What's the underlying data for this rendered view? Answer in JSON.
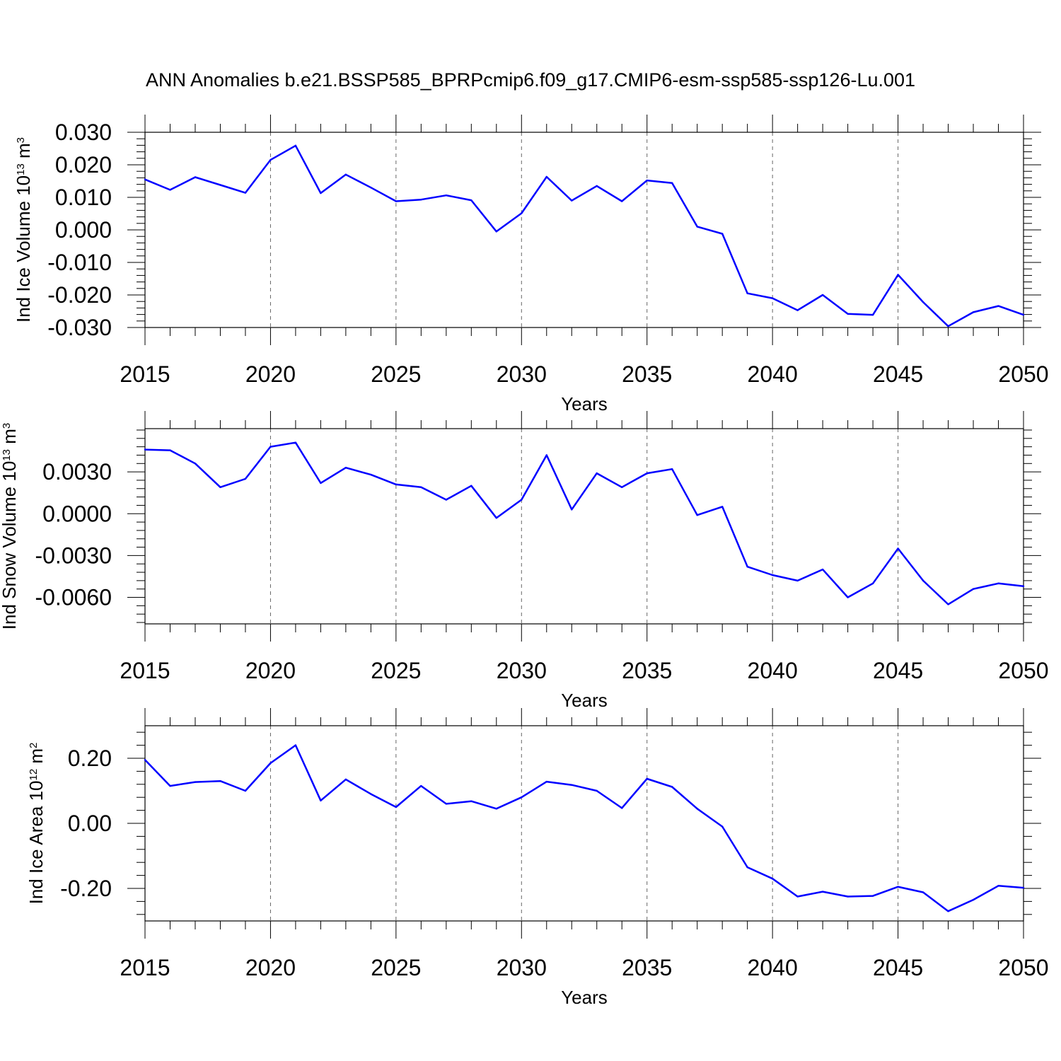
{
  "title": "ANN Anomalies b.e21.BSSP585_BPRPcmip6.f09_g17.CMIP6-esm-ssp585-ssp126-Lu.001",
  "colors": {
    "line": "#0000ff",
    "axis": "#000000",
    "grid": "#666666"
  },
  "chart_data": [
    {
      "type": "line",
      "xlabel": "Years",
      "ylabel": {
        "text": "Ind Ice Volume 10",
        "exp": "13",
        "unit": " m",
        "unit_exp": "3"
      },
      "xlim": [
        2015,
        2050
      ],
      "ylim": [
        -0.03,
        0.03
      ],
      "xticks": [
        "2015",
        "2020",
        "2025",
        "2030",
        "2035",
        "2040",
        "2045",
        "2050"
      ],
      "yticks": [
        {
          "v": 0.03,
          "label": "0.030"
        },
        {
          "v": 0.02,
          "label": "0.020"
        },
        {
          "v": 0.01,
          "label": "0.010"
        },
        {
          "v": 0.0,
          "label": "0.000"
        },
        {
          "v": -0.01,
          "label": "-0.010"
        },
        {
          "v": -0.02,
          "label": "-0.020"
        },
        {
          "v": -0.03,
          "label": "-0.030"
        }
      ],
      "x": [
        2015,
        2016,
        2017,
        2018,
        2019,
        2020,
        2021,
        2022,
        2023,
        2024,
        2025,
        2026,
        2027,
        2028,
        2029,
        2030,
        2031,
        2032,
        2033,
        2034,
        2035,
        2036,
        2037,
        2038,
        2039,
        2040,
        2041,
        2042,
        2043,
        2044,
        2045,
        2046,
        2047,
        2048,
        2049,
        2050
      ],
      "y": [
        0.0155,
        0.0123,
        0.0162,
        0.0138,
        0.0114,
        0.0215,
        0.0259,
        0.0113,
        0.017,
        0.013,
        0.0088,
        0.0093,
        0.0106,
        0.0091,
        -0.0005,
        0.0051,
        0.0163,
        0.009,
        0.0135,
        0.0088,
        0.0152,
        0.0144,
        0.001,
        -0.0012,
        -0.0195,
        -0.021,
        -0.0247,
        -0.02,
        -0.0258,
        -0.0261,
        -0.0138,
        -0.0222,
        -0.0296,
        -0.0253,
        -0.0234,
        -0.0261
      ],
      "grid": "vertical dashed at labeled years"
    },
    {
      "type": "line",
      "xlabel": "Years",
      "ylabel": {
        "text": "Ind Snow Volume 10",
        "exp": "13",
        "unit": " m",
        "unit_exp": "3"
      },
      "xlim": [
        2015,
        2050
      ],
      "ylim": [
        -0.0079,
        0.0061
      ],
      "xticks": [
        "2015",
        "2020",
        "2025",
        "2030",
        "2035",
        "2040",
        "2045",
        "2050"
      ],
      "yticks": [
        {
          "v": 0.003,
          "label": "0.0030"
        },
        {
          "v": 0.0,
          "label": "0.0000"
        },
        {
          "v": -0.003,
          "label": "-0.0030"
        },
        {
          "v": -0.006,
          "label": "-0.0060"
        }
      ],
      "x": [
        2015,
        2016,
        2017,
        2018,
        2019,
        2020,
        2021,
        2022,
        2023,
        2024,
        2025,
        2026,
        2027,
        2028,
        2029,
        2030,
        2031,
        2032,
        2033,
        2034,
        2035,
        2036,
        2037,
        2038,
        2039,
        2040,
        2041,
        2042,
        2043,
        2044,
        2045,
        2046,
        2047,
        2048,
        2049,
        2050
      ],
      "y": [
        0.0046,
        0.00455,
        0.0036,
        0.0019,
        0.0025,
        0.0048,
        0.0051,
        0.0022,
        0.0033,
        0.0028,
        0.0021,
        0.0019,
        0.001,
        0.002,
        -0.0003,
        0.001,
        0.0042,
        0.0003,
        0.0029,
        0.0019,
        0.0029,
        0.0032,
        -0.0001,
        0.0005,
        -0.0038,
        -0.0044,
        -0.0048,
        -0.004,
        -0.006,
        -0.005,
        -0.0025,
        -0.0048,
        -0.0065,
        -0.0054,
        -0.005,
        -0.0052
      ],
      "grid": "vertical dashed at labeled years"
    },
    {
      "type": "line",
      "xlabel": "Years",
      "ylabel": {
        "text": "Ind Ice Area 10",
        "exp": "12",
        "unit": " m",
        "unit_exp": "2"
      },
      "xlim": [
        2015,
        2050
      ],
      "ylim": [
        -0.3,
        0.3
      ],
      "xticks": [
        "2015",
        "2020",
        "2025",
        "2030",
        "2035",
        "2040",
        "2045",
        "2050"
      ],
      "yticks": [
        {
          "v": 0.2,
          "label": "0.20"
        },
        {
          "v": 0.0,
          "label": "0.00"
        },
        {
          "v": -0.2,
          "label": "-0.20"
        }
      ],
      "x": [
        2015,
        2016,
        2017,
        2018,
        2019,
        2020,
        2021,
        2022,
        2023,
        2024,
        2025,
        2026,
        2027,
        2028,
        2029,
        2030,
        2031,
        2032,
        2033,
        2034,
        2035,
        2036,
        2037,
        2038,
        2039,
        2040,
        2041,
        2042,
        2043,
        2044,
        2045,
        2046,
        2047,
        2048,
        2049,
        2050
      ],
      "y": [
        0.195,
        0.115,
        0.127,
        0.13,
        0.1,
        0.185,
        0.24,
        0.07,
        0.135,
        0.09,
        0.05,
        0.115,
        0.06,
        0.068,
        0.045,
        0.08,
        0.128,
        0.118,
        0.1,
        0.047,
        0.137,
        0.112,
        0.045,
        -0.01,
        -0.135,
        -0.17,
        -0.225,
        -0.21,
        -0.225,
        -0.223,
        -0.195,
        -0.212,
        -0.27,
        -0.235,
        -0.192,
        -0.198
      ],
      "grid": "vertical dashed at labeled years"
    }
  ]
}
